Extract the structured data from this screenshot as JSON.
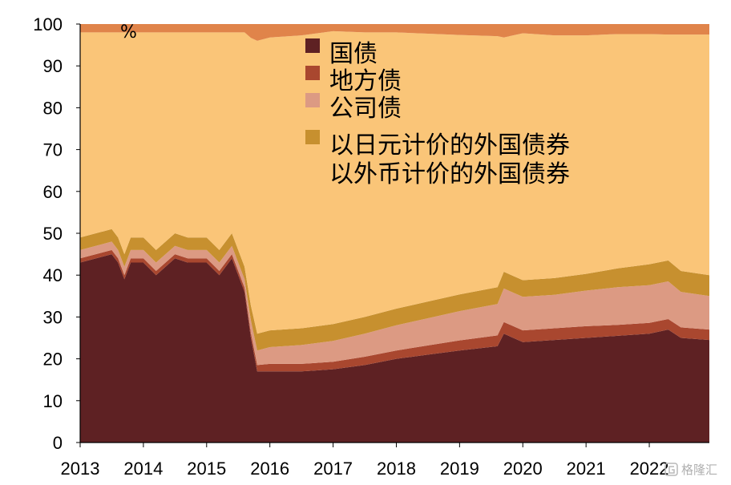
{
  "chart_data": {
    "type": "area",
    "stacked": true,
    "ylabel": "%",
    "ylim": [
      0,
      100
    ],
    "yticks": [
      "0",
      "10",
      "20",
      "30",
      "40",
      "50",
      "60",
      "70",
      "80",
      "90",
      "100"
    ],
    "xticks": [
      "2013",
      "2014",
      "2015",
      "2016",
      "2017",
      "2018",
      "2019",
      "2020",
      "2021",
      "2022"
    ],
    "xlim": [
      2013.0,
      2022.95
    ],
    "grid": false,
    "legend_position": "top-center",
    "legend": [
      "国债",
      "地方债",
      "公司债",
      "以日元计价的外国债券",
      "以外币计价的外国债券"
    ],
    "x": [
      2013.0,
      2013.5,
      2013.6,
      2013.7,
      2013.8,
      2014.0,
      2014.2,
      2014.5,
      2014.7,
      2015.0,
      2015.2,
      2015.4,
      2015.6,
      2015.7,
      2015.8,
      2016.0,
      2016.5,
      2017.0,
      2017.5,
      2018.0,
      2018.5,
      2019.0,
      2019.6,
      2019.7,
      2020.0,
      2020.5,
      2021.0,
      2021.5,
      2022.0,
      2022.3,
      2022.5,
      2022.95
    ],
    "series": [
      {
        "name": "国债",
        "color": "#5e2123",
        "values": [
          43,
          45,
          43,
          39,
          43,
          43,
          40,
          44,
          43,
          43,
          40,
          44,
          36,
          25,
          17,
          17,
          17,
          17.5,
          18.5,
          20,
          21,
          22,
          23,
          26,
          24,
          24.5,
          25,
          25.5,
          26,
          27,
          25,
          24.5
        ]
      },
      {
        "name": "地方债",
        "color": "#a9472f",
        "values": [
          1,
          1,
          1,
          1,
          1,
          1,
          1,
          1,
          1,
          1,
          1,
          1,
          1,
          1.2,
          1.5,
          1.8,
          1.8,
          1.8,
          2,
          2,
          2.2,
          2.4,
          2.6,
          2.8,
          2.8,
          2.8,
          2.8,
          2.6,
          2.6,
          2.5,
          2.5,
          2.5
        ]
      },
      {
        "name": "公司债",
        "color": "#dc9a83",
        "values": [
          2,
          2,
          2,
          2,
          2,
          2,
          2,
          2,
          2,
          2,
          2,
          2,
          2,
          3,
          3.5,
          4,
          4.5,
          5,
          5.5,
          6,
          6.5,
          7,
          7.5,
          8,
          8,
          8,
          8.5,
          9,
          9,
          9,
          8.5,
          8
        ]
      },
      {
        "name": "以日元计价的外国债券",
        "color": "#c7902f",
        "values": [
          3,
          3,
          3,
          3,
          3,
          3,
          3,
          3,
          3,
          3,
          3,
          3,
          3,
          3.5,
          4,
          4,
          4,
          4,
          4,
          4,
          4,
          4,
          4,
          4,
          4,
          4,
          4,
          4.5,
          5,
          5,
          5,
          5
        ]
      },
      {
        "name": "以外币计价的外国债券",
        "color": "#fac578",
        "values": [
          49,
          47,
          49,
          53,
          49,
          49,
          52,
          48,
          49,
          49,
          52,
          48,
          56,
          64,
          70,
          70,
          70,
          70,
          68,
          66,
          64,
          62,
          60,
          56,
          59,
          58,
          57,
          56,
          55,
          54,
          56.5,
          57.5
        ]
      },
      {
        "name": "",
        "color": "#e0844a",
        "values": [
          2,
          2,
          2,
          2,
          2,
          2,
          2,
          2,
          2,
          2,
          2,
          2,
          2,
          3.3,
          4,
          3.2,
          2.7,
          2.2,
          2,
          2,
          2.3,
          2.6,
          2.9,
          3.2,
          2.2,
          2.7,
          2.7,
          2.4,
          2.4,
          2.5,
          2.5,
          2.5
        ]
      }
    ]
  },
  "watermark": {
    "text": "格隆汇",
    "icon": "glh-logo-icon"
  }
}
